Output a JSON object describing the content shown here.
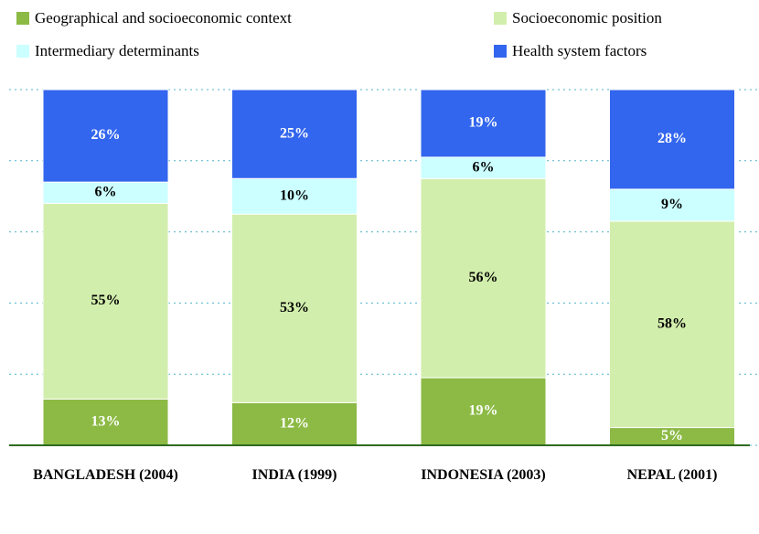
{
  "chart_data": {
    "type": "stacked_bar",
    "categories": [
      "BANGLADESH (2004)",
      "INDIA (1999)",
      "INDONESIA (2003)",
      "NEPAL (2001)"
    ],
    "series": [
      {
        "name": "Geographical and socioeconomic context",
        "color": "#8cba45",
        "values": [
          13,
          12,
          19,
          5
        ],
        "value_labels": [
          "13%",
          "12%",
          "19%",
          "5%"
        ]
      },
      {
        "name": "Socioeconomic position",
        "color": "#d2eeac",
        "values": [
          55,
          53,
          56,
          58
        ],
        "value_labels": [
          "55%",
          "53%",
          "56%",
          "58%"
        ]
      },
      {
        "name": "Intermediary determinants",
        "color": "#ccffff",
        "values": [
          6,
          10,
          6,
          9
        ],
        "value_labels": [
          "6%",
          "10%",
          "6%",
          "9%"
        ]
      },
      {
        "name": "Health system factors",
        "color": "#3366ee",
        "values": [
          26,
          25,
          19,
          28
        ],
        "value_labels": [
          "26%",
          "25%",
          "19%",
          "28%"
        ]
      }
    ],
    "ylim": [
      0,
      100
    ],
    "yticks": [
      0,
      20,
      40,
      60,
      80,
      100
    ],
    "grid": true
  }
}
